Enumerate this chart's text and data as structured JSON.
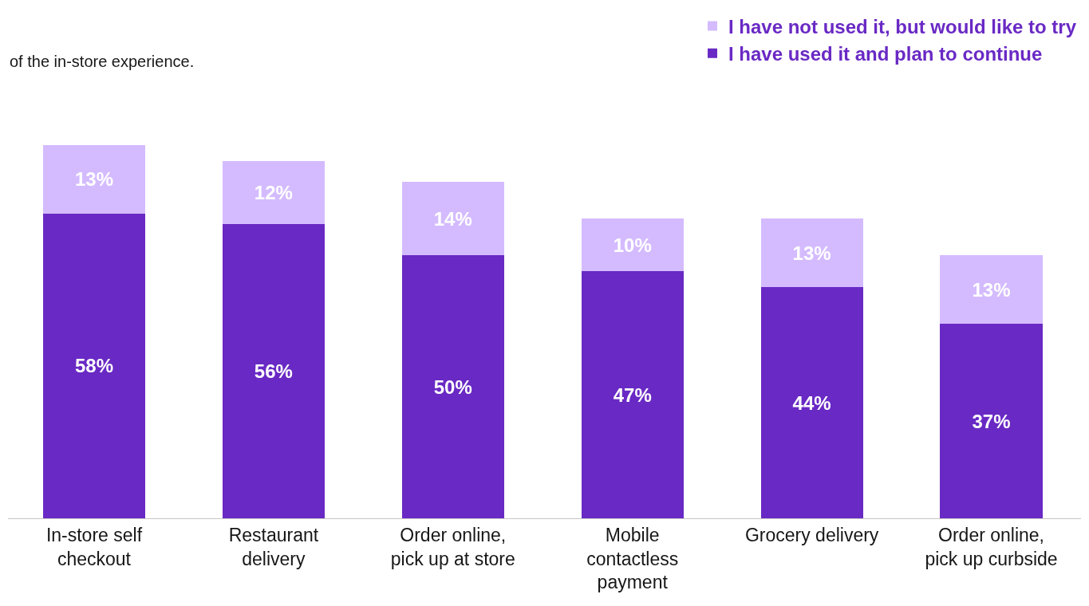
{
  "chart_data": {
    "type": "bar",
    "stacked": true,
    "subtitle": "of the in-store experience.",
    "categories": [
      "In-store self checkout",
      "Restaurant delivery",
      "Order online, pick up at store",
      "Mobile contactless payment",
      "Grocery delivery",
      "Order online, pick up curbside"
    ],
    "series": [
      {
        "name": "I have used it and plan to continue",
        "color": "#6929c4",
        "values": [
          58,
          56,
          50,
          47,
          44,
          37
        ],
        "value_labels": [
          "58%",
          "56%",
          "50%",
          "47%",
          "44%",
          "37%"
        ]
      },
      {
        "name": "I have not used it, but would like to try",
        "color": "#d4bbff",
        "values": [
          13,
          12,
          14,
          10,
          13,
          13
        ],
        "value_labels": [
          "13%",
          "12%",
          "14%",
          "10%",
          "13%",
          "13%"
        ]
      }
    ],
    "legend": "top right",
    "grid": false
  }
}
